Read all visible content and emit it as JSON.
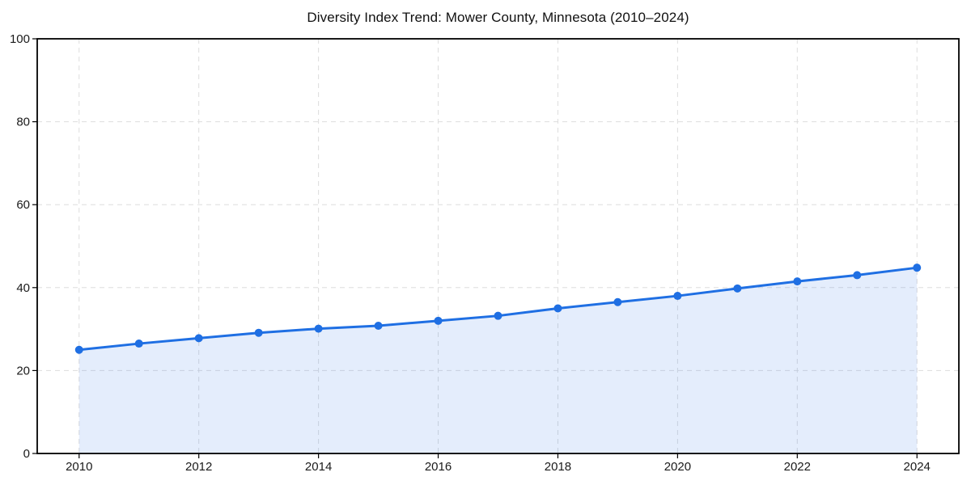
{
  "chart_data": {
    "type": "area",
    "title": "Diversity Index Trend: Mower County, Minnesota (2010–2024)",
    "xlabel": "",
    "ylabel": "",
    "x": [
      2010,
      2011,
      2012,
      2013,
      2014,
      2015,
      2016,
      2017,
      2018,
      2019,
      2020,
      2021,
      2022,
      2023,
      2024
    ],
    "series": [
      {
        "name": "Diversity Index",
        "values": [
          25.0,
          26.5,
          27.8,
          29.1,
          30.1,
          30.8,
          32.0,
          33.2,
          35.0,
          36.5,
          38.0,
          39.8,
          41.5,
          43.0,
          44.8
        ]
      }
    ],
    "xlim": [
      2009.3,
      2024.7
    ],
    "ylim": [
      0,
      100
    ],
    "xticks": [
      2010,
      2012,
      2014,
      2016,
      2018,
      2020,
      2022,
      2024
    ],
    "yticks": [
      0,
      20,
      40,
      60,
      80,
      100
    ],
    "grid": true,
    "grid_style": "dashed",
    "legend_position": "none",
    "line_color": "#1f6fe3",
    "marker_color": "#1f6fe3",
    "fill_color": "rgba(31, 111, 227, 0.12)",
    "grid_color": "#dddddd",
    "spine_color": "#000000",
    "tick_color": "#000000",
    "text_color": "#1a1a1a",
    "background_color": "#ffffff"
  }
}
